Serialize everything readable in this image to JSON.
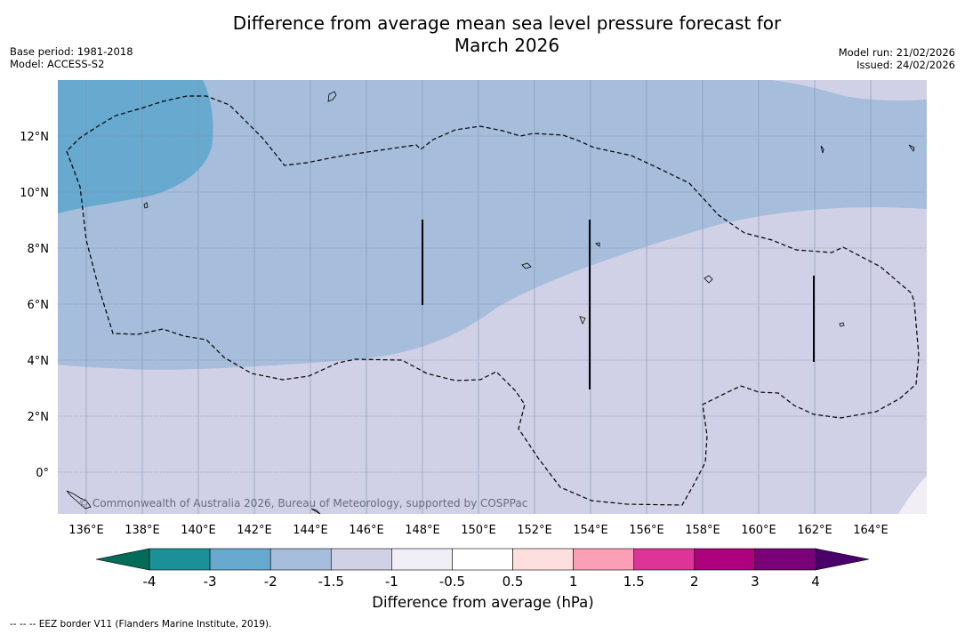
{
  "title_line1": "Difference from average mean sea level pressure forecast for",
  "title_line2": "March 2026",
  "base_period": "Base period: 1981-2018",
  "model": "Model: ACCESS-S2",
  "model_run": "Model run: 21/02/2026",
  "issued": "Issued: 24/02/2026",
  "copyright": "© Commonwealth of Australia 2026, Bureau of Meteorology, supported by COSPPac",
  "lon_labels": [
    "136°E",
    "138°E",
    "140°E",
    "142°E",
    "144°E",
    "146°E",
    "148°E",
    "150°E",
    "152°E",
    "154°E",
    "156°E",
    "158°E",
    "160°E",
    "162°E",
    "164°E"
  ],
  "lat_labels": [
    "12°N",
    "10°N",
    "8°N",
    "6°N",
    "4°N",
    "2°N",
    "0°"
  ],
  "colorbar": {
    "title": "Difference from average (hPa)",
    "ticks": [
      "-4",
      "-3",
      "-2",
      "-1.5",
      "-1",
      "-0.5",
      "0.5",
      "1",
      "1.5",
      "2",
      "3",
      "4"
    ],
    "colors": [
      "#1c9099",
      "#67a9cf",
      "#a6bddb",
      "#d0d1e6",
      "#f1eef6",
      "#ffffff",
      "#fde0dd",
      "#fa9fb5",
      "#dd3497",
      "#ae017e",
      "#7a0177"
    ],
    "under_color": "#016c59",
    "over_color": "#49006a"
  },
  "footnote": "--  --  -- EEZ border V11 (Flanders Marine Institute, 2019).",
  "colors": {
    "band_lt_m3": "#67a9cf",
    "band_m2_m15": "#a6bddb",
    "band_m15_m1": "#d0d1e6",
    "band_m1_m05": "#f1eef6"
  }
}
